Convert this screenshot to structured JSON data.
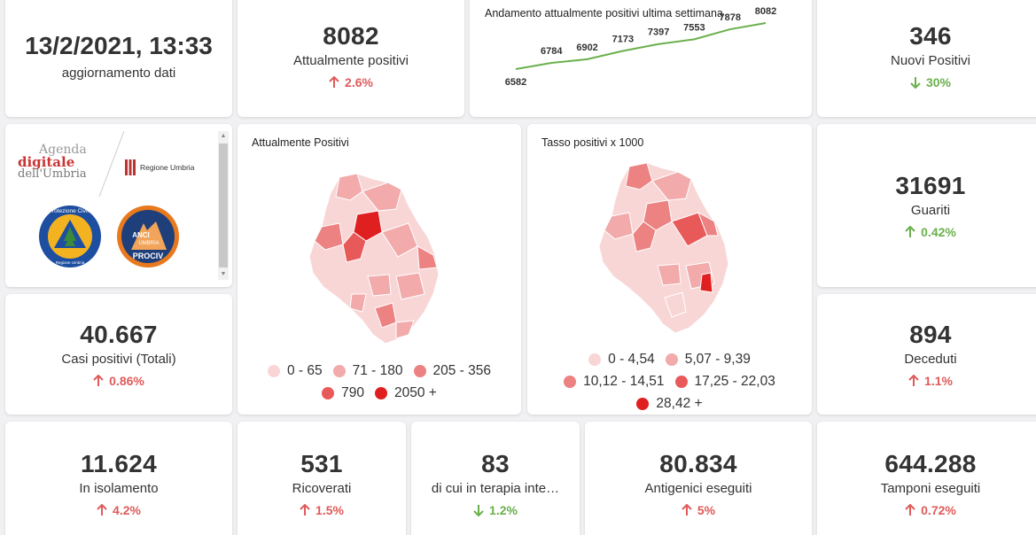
{
  "update": {
    "datetime": "13/2/2021, 13:33",
    "label": "aggiornamento dati"
  },
  "attualmente_positivi": {
    "value": "8082",
    "label": "Attualmente positivi",
    "change": "2.6%",
    "direction": "up"
  },
  "trend": {
    "title": "Andamento attualmente positivi ultima settimana",
    "values": [
      "6582",
      "6784",
      "6902",
      "7173",
      "7397",
      "7553",
      "7878",
      "8082"
    ],
    "line_color": "#6ab04c"
  },
  "nuovi_positivi": {
    "value": "346",
    "label": "Nuovi Positivi",
    "change": "30%",
    "direction": "down"
  },
  "logos": {
    "agenda_line1": "Agenda",
    "agenda_line2": "digitale",
    "agenda_line3": "dell'Umbria",
    "regione": "Regione Umbria",
    "protezione": "Protezione Civile",
    "protezione_sub": "Regione Umbria",
    "anci_line1": "ANCI",
    "anci_line2": "UMBRIA",
    "anci_line3": "PROCIV"
  },
  "map1": {
    "title": "Attualmente Positivi",
    "legend": [
      "0 - 65",
      "71 - 180",
      "205 - 356",
      "790",
      "2050 +"
    ],
    "colors": [
      "#f9d6d6",
      "#f2aaaa",
      "#ec8282",
      "#e85a5a",
      "#e02020"
    ]
  },
  "map2": {
    "title": "Tasso positivi x 1000",
    "legend": [
      "0 - 4,54",
      "5,07 - 9,39",
      "10,12 - 14,51",
      "17,25 - 22,03",
      "28,42 +"
    ],
    "colors": [
      "#f9d6d6",
      "#f2aaaa",
      "#ec8282",
      "#e85a5a",
      "#e02020"
    ]
  },
  "guariti": {
    "value": "31691",
    "label": "Guariti",
    "change": "0.42%",
    "direction": "down"
  },
  "casi_totali": {
    "value": "40.667",
    "label": "Casi positivi (Totali)",
    "change": "0.86%",
    "direction": "up"
  },
  "deceduti": {
    "value": "894",
    "label": "Deceduti",
    "change": "1.1%",
    "direction": "up"
  },
  "isolamento": {
    "value": "11.624",
    "label": "In isolamento",
    "change": "4.2%",
    "direction": "up"
  },
  "ricoverati": {
    "value": "531",
    "label": "Ricoverati",
    "change": "1.5%",
    "direction": "up"
  },
  "terapia": {
    "value": "83",
    "label": "di cui in terapia inte…",
    "change": "1.2%",
    "direction": "down"
  },
  "antigenici": {
    "value": "80.834",
    "label": "Antigenici eseguiti",
    "change": "5%",
    "direction": "up"
  },
  "tamponi": {
    "value": "644.288",
    "label": "Tamponi eseguiti",
    "change": "0.72%",
    "direction": "up"
  }
}
